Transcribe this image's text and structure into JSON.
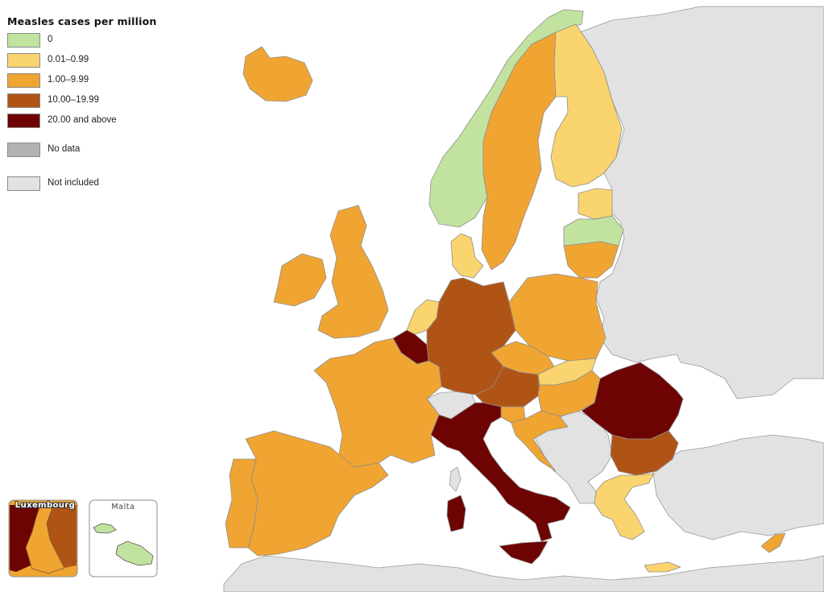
{
  "legend": {
    "title": "Measles cases per million",
    "items": [
      {
        "label": "0",
        "color": "#c2e3a0"
      },
      {
        "label": "0.01–0.99",
        "color": "#fad46e"
      },
      {
        "label": "1.00–9.99",
        "color": "#f0a532"
      },
      {
        "label": "10.00–19.99",
        "color": "#b05416"
      },
      {
        "label": "20.00 and above",
        "color": "#6e0303"
      },
      {
        "label": "No data",
        "color": "#b2b2b2"
      },
      {
        "label": "Not included",
        "color": "#e2e2e2"
      }
    ]
  },
  "insets": {
    "luxembourg": "Luxembourg",
    "malta": "Malta"
  },
  "countries": {
    "Iceland": "1.00–9.99",
    "Norway": "0",
    "Sweden": "1.00–9.99",
    "Finland": "0.01–0.99",
    "Estonia": "0.01–0.99",
    "Latvia": "0",
    "Lithuania": "1.00–9.99",
    "Denmark": "0.01–0.99",
    "Ireland": "1.00–9.99",
    "United Kingdom": "1.00–9.99",
    "Netherlands": "0.01–0.99",
    "Belgium": "20.00 and above",
    "Luxembourg": "20.00 and above",
    "Germany": "10.00–19.99",
    "Poland": "1.00–9.99",
    "Czechia": "1.00–9.99",
    "Slovakia": "0.01–0.99",
    "Austria": "10.00–19.99",
    "Hungary": "1.00–9.99",
    "Slovenia": "1.00–9.99",
    "Croatia": "1.00–9.99",
    "Romania": "20.00 and above",
    "Bulgaria": "10.00–19.99",
    "France": "1.00–9.99",
    "Spain": "1.00–9.99",
    "Portugal": "1.00–9.99",
    "Italy": "20.00 and above",
    "Malta": "0",
    "Greece": "0.01–0.99",
    "Cyprus": "1.00–9.99",
    "Switzerland": "Not included"
  }
}
